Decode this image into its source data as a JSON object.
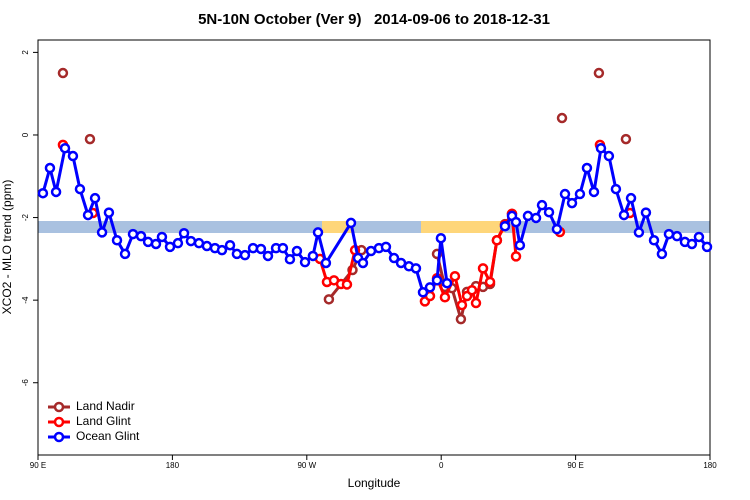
{
  "chart_data": {
    "type": "line",
    "title": "5N-10N October (Ver 9)   2014-09-06 to 2018-12-31",
    "x_label": "Longitude",
    "y_label": "XCO2 - MLO trend (ppm)",
    "xlim": [
      90,
      540
    ],
    "ylim": [
      -7.75,
      2.3
    ],
    "xticks": [
      {
        "value": 90,
        "label": "90 E"
      },
      180,
      {
        "value": 270,
        "label": "90 W"
      },
      {
        "value": 360,
        "label": "0"
      },
      {
        "value": 450,
        "label": "90 E"
      },
      {
        "value": 540,
        "label": "180"
      }
    ],
    "yticks": [
      2,
      0,
      -2,
      -4,
      -6
    ],
    "legend": "bottom-left",
    "series": [
      {
        "name": "Land Nadir",
        "color": "#a52a2a",
        "x": [
          106.7,
          null,
          124.8,
          null,
          284.8,
          300.6,
          306.6,
          null,
          357.2,
          362.5,
          367.2,
          373.2,
          377.3,
          383.3,
          388.0,
          392.7,
          397.3,
          402.7,
          407.4,
          null,
          440.9,
          null,
          465.6,
          null,
          483.7
        ],
        "values": [
          1.5,
          null,
          -0.1,
          null,
          -3.98,
          -3.27,
          -2.79,
          null,
          -2.88,
          -3.68,
          -3.71,
          -4.46,
          -3.8,
          -3.66,
          -3.68,
          -3.61,
          -2.55,
          -2.16,
          -1.91,
          null,
          0.41,
          null,
          1.5,
          null,
          -0.1
        ]
      },
      {
        "name": "Land Glint",
        "color": "#ff0000",
        "x": [
          106.7,
          null,
          126.8,
          null,
          278.8,
          283.5,
          288.2,
          292.9,
          296.9,
          302.3,
          null,
          349.1,
          352.5,
          357.2,
          362.5,
          369.2,
          373.9,
          377.3,
          380.6,
          383.3,
          388.0,
          392.7,
          397.3,
          402.7,
          407.4,
          410.1,
          null,
          439.5,
          null,
          466.3,
          null,
          486.4
        ],
        "values": [
          -0.24,
          null,
          -1.89,
          null,
          -3.0,
          -3.56,
          -3.52,
          -3.61,
          -3.62,
          -2.79,
          null,
          -4.03,
          -3.9,
          -3.47,
          -3.93,
          -3.42,
          -4.12,
          -3.9,
          -3.76,
          -4.07,
          -3.23,
          -3.56,
          -2.55,
          -2.18,
          -1.91,
          -2.94,
          null,
          -2.35,
          null,
          -0.24,
          null,
          -1.89
        ]
      },
      {
        "name": "Ocean Glint",
        "color": "#0000ff",
        "x": [
          93.3,
          98.0,
          102.1,
          108.1,
          113.4,
          118.1,
          123.5,
          128.2,
          132.9,
          137.5,
          142.9,
          148.3,
          153.6,
          159.0,
          163.7,
          169.0,
          173.0,
          178.4,
          183.7,
          187.8,
          192.4,
          197.8,
          203.1,
          208.5,
          213.2,
          218.6,
          223.2,
          228.6,
          234.0,
          239.3,
          244.0,
          249.4,
          254.0,
          258.7,
          263.4,
          268.8,
          274.1,
          277.5,
          282.8,
          299.6,
          304.3,
          307.6,
          313.0,
          318.3,
          323.0,
          328.4,
          333.1,
          338.4,
          343.1,
          347.8,
          352.5,
          357.2,
          359.8,
          363.9,
          null,
          402.7,
          407.4,
          410.1,
          412.7,
          418.1,
          423.5,
          427.5,
          432.2,
          437.5,
          442.9,
          447.6,
          452.9,
          457.6,
          462.3,
          467.0,
          472.3,
          477.0,
          482.4,
          487.1,
          492.4,
          497.1,
          502.5,
          507.8,
          512.5,
          517.9,
          523.2,
          527.9,
          532.6,
          538.0
        ],
        "values": [
          -1.41,
          -0.8,
          -1.38,
          -0.32,
          -0.51,
          -1.31,
          -1.94,
          -1.53,
          -2.36,
          -1.88,
          -2.55,
          -2.88,
          -2.4,
          -2.45,
          -2.59,
          -2.64,
          -2.47,
          -2.71,
          -2.62,
          -2.38,
          -2.57,
          -2.62,
          -2.69,
          -2.74,
          -2.79,
          -2.67,
          -2.88,
          -2.91,
          -2.74,
          -2.76,
          -2.93,
          -2.74,
          -2.74,
          -3.01,
          -2.81,
          -3.08,
          -2.93,
          -2.36,
          -3.1,
          -2.13,
          -2.98,
          -3.1,
          -2.81,
          -2.74,
          -2.71,
          -2.98,
          -3.1,
          -3.18,
          -3.23,
          -3.81,
          -3.69,
          -3.52,
          -2.5,
          -3.59,
          null,
          -2.21,
          -1.96,
          -2.11,
          -2.67,
          -1.96,
          -2.01,
          -1.7,
          -1.87,
          -2.28,
          -1.43,
          -1.65,
          -1.43,
          -0.8,
          -1.38,
          -0.32,
          -0.51,
          -1.31,
          -1.94,
          -1.53,
          -2.36,
          -1.88,
          -2.55,
          -2.88,
          -2.4,
          -2.45,
          -2.59,
          -2.64,
          -2.47,
          -2.71
        ]
      }
    ]
  }
}
